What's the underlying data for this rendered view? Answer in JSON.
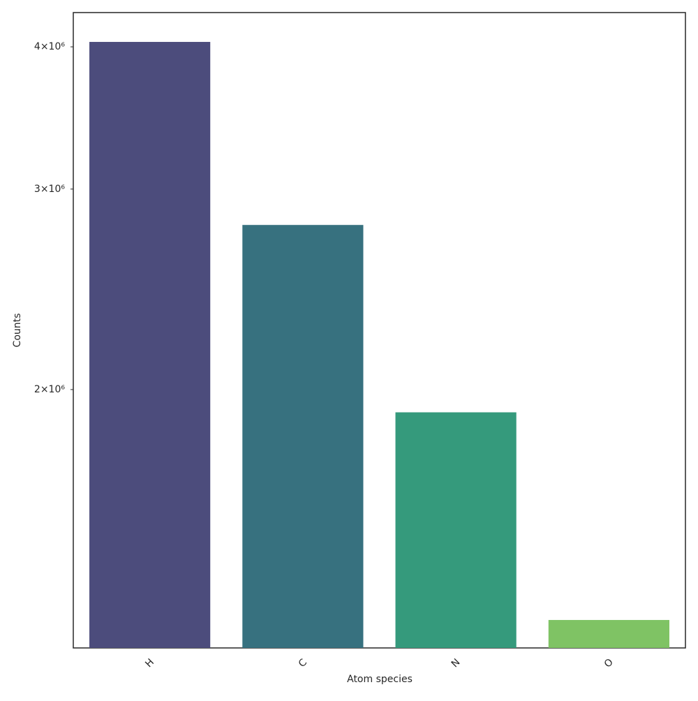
{
  "chart_data": {
    "type": "bar",
    "x_label": "Atom species",
    "y_label": "Counts",
    "categories": [
      "H",
      "C",
      "N",
      "O"
    ],
    "values": [
      4040000,
      2790000,
      1910000,
      1255000
    ],
    "colors": [
      "#4c4c7c",
      "#37717f",
      "#359a7c",
      "#7fc364"
    ],
    "y_scale": "log",
    "ylim": [
      1186000,
      4287000
    ],
    "yticks": [
      {
        "value": 2000000,
        "label": "2×10⁶"
      },
      {
        "value": 3000000,
        "label": "3×10⁶"
      },
      {
        "value": 4000000,
        "label": "4×10⁶"
      }
    ],
    "grid": false
  }
}
